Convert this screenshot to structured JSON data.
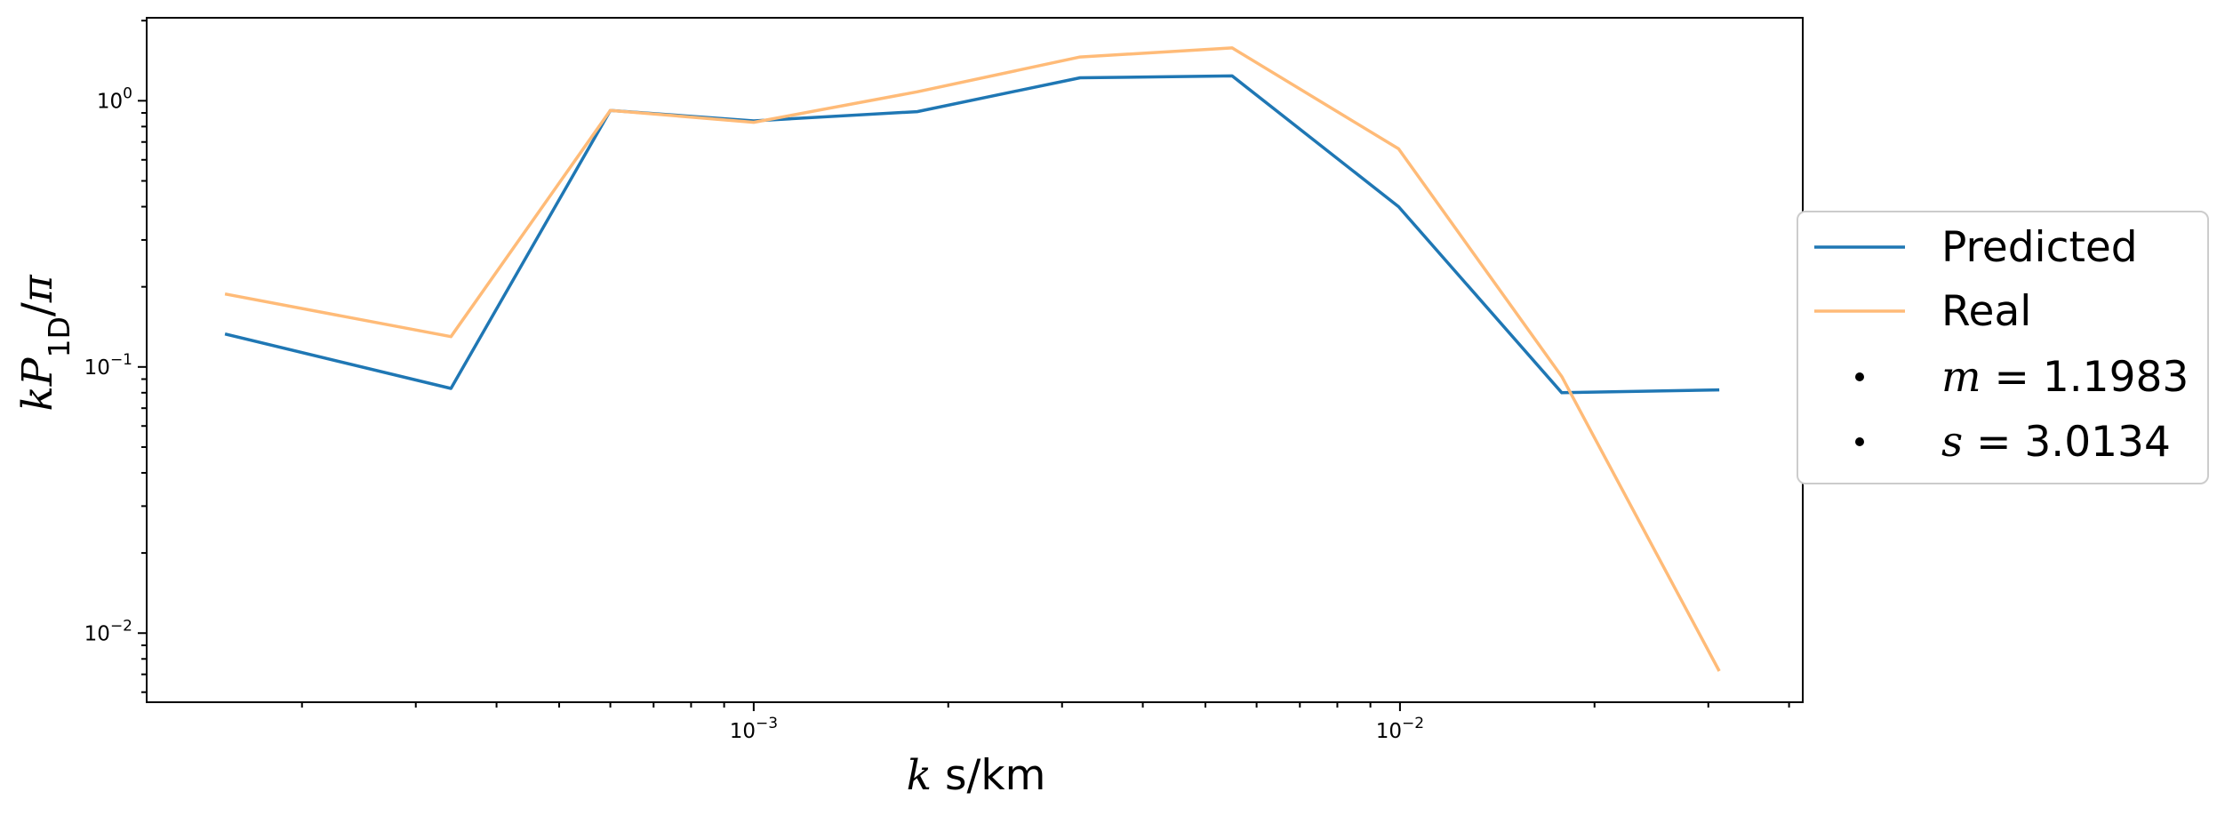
{
  "chart_data": {
    "type": "line",
    "xscale": "log",
    "yscale": "log",
    "xlim": [
      0.000115,
      0.042
    ],
    "ylim": [
      0.0055,
      2.05
    ],
    "xlabel": {
      "var": "k",
      "unit": " s/km"
    },
    "ylabel": {
      "k": "k",
      "P": "P",
      "sub": "1D",
      "slash": "/",
      "pi": "π"
    },
    "xticks": [
      {
        "value": 0.001,
        "base": "10",
        "exp": "−3"
      },
      {
        "value": 0.01,
        "base": "10",
        "exp": "−2"
      }
    ],
    "yticks": [
      {
        "value": 0.01,
        "base": "10",
        "exp": "−2"
      },
      {
        "value": 0.1,
        "base": "10",
        "exp": "−1"
      },
      {
        "value": 1,
        "base": "10",
        "exp": "0"
      }
    ],
    "series": [
      {
        "name": "Predicted",
        "color": "#1f77b4",
        "x": [
          0.000152,
          0.00034,
          0.0006,
          0.001,
          0.00179,
          0.0032,
          0.0055,
          0.00995,
          0.0178,
          0.0312
        ],
        "y": [
          0.133,
          0.083,
          0.92,
          0.84,
          0.91,
          1.22,
          1.24,
          0.4,
          0.08,
          0.082
        ]
      },
      {
        "name": "Real",
        "color": "#ffbb78",
        "x": [
          0.000152,
          0.00034,
          0.0006,
          0.001,
          0.00179,
          0.0032,
          0.0055,
          0.00995,
          0.0178,
          0.0312
        ],
        "y": [
          0.188,
          0.13,
          0.92,
          0.83,
          1.08,
          1.46,
          1.58,
          0.66,
          0.092,
          0.0072
        ]
      }
    ],
    "annotations": [
      {
        "var": "m",
        "eq": " = ",
        "value": "1.1983"
      },
      {
        "var": "s",
        "eq": " = ",
        "value": "3.0134"
      }
    ],
    "legend_position": "center-right, outside plot",
    "grid": false
  }
}
